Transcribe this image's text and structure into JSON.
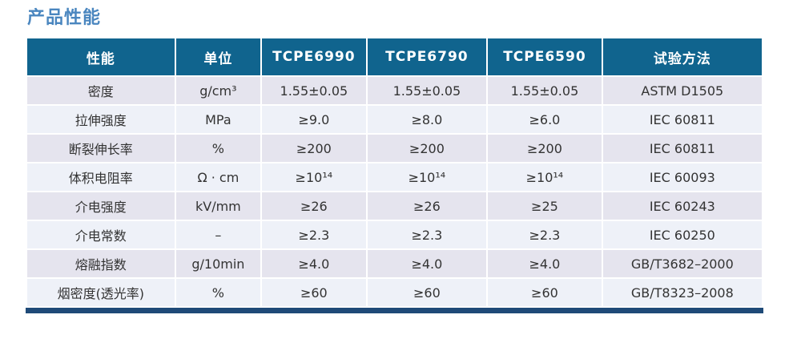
{
  "page": {
    "title": "产品性能"
  },
  "colors": {
    "title_text": "#4a86bf",
    "header_bg": "#10648e",
    "header_text": "#ffffff",
    "row_odd_bg": "#e5e4ee",
    "row_even_bg": "#eef1f8",
    "footer_bar": "#1f4a78"
  },
  "table": {
    "columns": [
      "性能",
      "单位",
      "TCPE6990",
      "TCPE6790",
      "TCPE6590",
      "试验方法"
    ],
    "rows": [
      [
        "密度",
        "g/cm³",
        "1.55±0.05",
        "1.55±0.05",
        "1.55±0.05",
        "ASTM D1505"
      ],
      [
        "拉伸强度",
        "MPa",
        "≥9.0",
        "≥8.0",
        "≥6.0",
        "IEC 60811"
      ],
      [
        "断裂伸长率",
        "%",
        "≥200",
        "≥200",
        "≥200",
        "IEC 60811"
      ],
      [
        "体积电阻率",
        "Ω · cm",
        "≥10¹⁴",
        "≥10¹⁴",
        "≥10¹⁴",
        "IEC 60093"
      ],
      [
        "介电强度",
        "kV/mm",
        "≥26",
        "≥26",
        "≥25",
        "IEC 60243"
      ],
      [
        "介电常数",
        "–",
        "≥2.3",
        "≥2.3",
        "≥2.3",
        "IEC 60250"
      ],
      [
        "熔融指数",
        "g/10min",
        "≥4.0",
        "≥4.0",
        "≥4.0",
        "GB/T3682–2000"
      ],
      [
        "烟密度(透光率)",
        "%",
        "≥60",
        "≥60",
        "≥60",
        "GB/T8323–2008"
      ]
    ]
  }
}
